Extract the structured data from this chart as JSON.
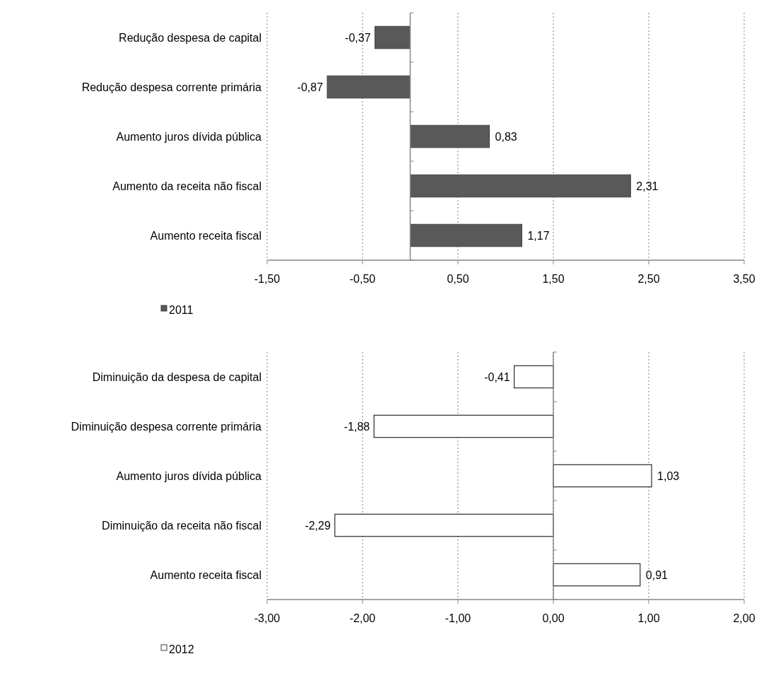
{
  "chart_data": [
    {
      "type": "bar",
      "orientation": "horizontal",
      "categories": [
        "Redução despesa de capital",
        "Redução despesa corrente primária",
        "Aumento juros dívida pública",
        "Aumento da receita não fiscal",
        "Aumento receita fiscal"
      ],
      "series": [
        {
          "name": "2011",
          "color": "#595959",
          "values": [
            -0.37,
            -0.87,
            0.83,
            2.31,
            1.17
          ],
          "value_labels": [
            "-0,37",
            "-0,87",
            "0,83",
            "2,31",
            "1,17"
          ]
        }
      ],
      "xlim": [
        -1.5,
        3.5
      ],
      "xticks": [
        {
          "value": -1.5,
          "label": "-1,50"
        },
        {
          "value": -0.5,
          "label": "-0,50"
        },
        {
          "value": 0.5,
          "label": "0,50"
        },
        {
          "value": 1.5,
          "label": "1,50"
        },
        {
          "value": 2.5,
          "label": "2,50"
        },
        {
          "value": 3.5,
          "label": "3,50"
        }
      ],
      "grid": "x",
      "legend": "bottom left"
    },
    {
      "type": "bar",
      "orientation": "horizontal",
      "categories": [
        "Diminuição da despesa de capital",
        "Diminuição despesa corrente primária",
        "Aumento juros dívida pública",
        "Diminuição da receita não fiscal",
        "Aumento receita fiscal"
      ],
      "series": [
        {
          "name": "2012",
          "color": "#ffffff",
          "values": [
            -0.41,
            -1.88,
            1.03,
            -2.29,
            0.91
          ],
          "value_labels": [
            "-0,41",
            "-1,88",
            "1,03",
            "-2,29",
            "0,91"
          ]
        }
      ],
      "xlim": [
        -3,
        2
      ],
      "xticks": [
        {
          "value": -3,
          "label": "-3,00"
        },
        {
          "value": -2,
          "label": "-2,00"
        },
        {
          "value": -1,
          "label": "-1,00"
        },
        {
          "value": 0,
          "label": "0,00"
        },
        {
          "value": 1,
          "label": "1,00"
        },
        {
          "value": 2,
          "label": "2,00"
        }
      ],
      "grid": "x",
      "legend": "bottom left"
    }
  ]
}
